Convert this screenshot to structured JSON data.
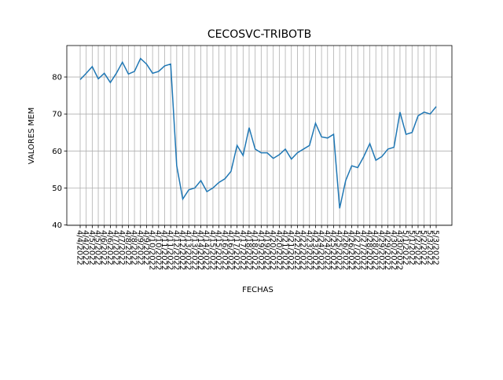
{
  "chart_data": {
    "type": "line",
    "title": "CECOSVC-TRIBOTB",
    "x_label": "FECHAS",
    "y_label": "VALORES MEM",
    "categories": [
      "4/4/2022",
      "4/4/2022",
      "4/5/2022",
      "4/5/2022",
      "4/6/2022",
      "4/6/2022",
      "4/7/2022",
      "4/7/2022",
      "4/8/2022",
      "4/8/2022",
      "4/9/2022",
      "4/9/2022",
      "4/10/2022",
      "4/10/2022",
      "4/11/2022",
      "4/11/2022",
      "4/12/2022",
      "4/12/2022",
      "4/13/2022",
      "4/13/2022",
      "4/14/2022",
      "4/14/2022",
      "4/15/2022",
      "4/15/2022",
      "4/16/2022",
      "4/16/2022",
      "4/17/2022",
      "4/17/2022",
      "4/18/2022",
      "4/18/2022",
      "4/19/2022",
      "4/19/2022",
      "4/20/2022",
      "4/20/2022",
      "4/21/2022",
      "4/21/2022",
      "4/22/2022",
      "4/22/2022",
      "4/23/2022",
      "4/23/2022",
      "4/24/2022",
      "4/24/2022",
      "4/25/2022",
      "4/25/2022",
      "4/26/2022",
      "4/26/2022",
      "4/27/2022",
      "4/27/2022",
      "4/28/2022",
      "4/28/2022",
      "4/29/2022",
      "4/29/2022",
      "4/30/2022",
      "4/30/2022",
      "5/1/2022",
      "5/1/2022",
      "5/2/2022",
      "5/2/2022",
      "5/3/2022",
      "5/3/2022"
    ],
    "series": [
      {
        "name": "CECOSVC-TRIBOTB",
        "color": "#1f77b4",
        "values": [
          79.3,
          81,
          82.8,
          79.5,
          81,
          78.5,
          81,
          84,
          80.8,
          81.5,
          85,
          83.5,
          81,
          81.5,
          83,
          83.5,
          56,
          47,
          49.5,
          50,
          52,
          49,
          50,
          51.5,
          52.5,
          54.5,
          61.5,
          58.8,
          66.3,
          60.5,
          59.5,
          59.5,
          58,
          59,
          60.5,
          57.8,
          59.5,
          60.5,
          61.5,
          67.5,
          63.8,
          63.5,
          64.5,
          44.5,
          52,
          56,
          55.5,
          58.5,
          62,
          57.5,
          58.5,
          60.5,
          61,
          70.5,
          64.5,
          65,
          69.5,
          70.5,
          70,
          72
        ]
      }
    ],
    "ylim": [
      39.9,
      88.5
    ],
    "yticks": [
      40,
      50,
      60,
      70,
      80
    ],
    "grid": true
  }
}
